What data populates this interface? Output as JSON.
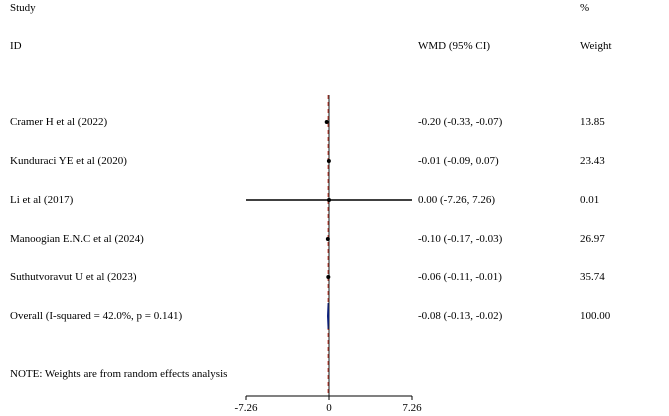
{
  "header": {
    "study_label": "Study",
    "id_label": "ID",
    "percent_label": "%",
    "wmd_label": "WMD (95% CI)",
    "weight_label": "Weight"
  },
  "note": "NOTE: Weights are from random effects analysis",
  "colors": {
    "null_line": "#1a1a1a",
    "overall_line": "#c0392b",
    "diamond": "#0b1f7a",
    "marker": "#000000"
  },
  "chart_data": {
    "type": "forest",
    "xlim": [
      -7.26,
      7.26
    ],
    "null_value": 0,
    "x_ticks": [
      {
        "value": -7.26,
        "label": "-7.26"
      },
      {
        "value": 0,
        "label": "0"
      },
      {
        "value": 7.26,
        "label": "7.26"
      }
    ],
    "studies": [
      {
        "id": "Cramer H et al (2022)",
        "estimate": -0.2,
        "lower": -0.33,
        "upper": -0.07,
        "ci_text": "-0.20 (-0.33, -0.07)",
        "weight": "13.85"
      },
      {
        "id": "Kunduraci YE et al (2020)",
        "estimate": -0.01,
        "lower": -0.09,
        "upper": 0.07,
        "ci_text": "-0.01 (-0.09, 0.07)",
        "weight": "23.43"
      },
      {
        "id": "Li  et al (2017)",
        "estimate": 0.0,
        "lower": -7.26,
        "upper": 7.26,
        "ci_text": "0.00 (-7.26, 7.26)",
        "weight": "0.01"
      },
      {
        "id": "Manoogian E.N.C et al (2024)",
        "estimate": -0.1,
        "lower": -0.17,
        "upper": -0.03,
        "ci_text": "-0.10 (-0.17, -0.03)",
        "weight": "26.97"
      },
      {
        "id": "Suthutvoravut U et al (2023)",
        "estimate": -0.06,
        "lower": -0.11,
        "upper": -0.01,
        "ci_text": "-0.06 (-0.11, -0.01)",
        "weight": "35.74"
      }
    ],
    "overall": {
      "id": "Overall  (I-squared = 42.0%, p = 0.141)",
      "estimate": -0.08,
      "lower": -0.13,
      "upper": -0.02,
      "ci_text": "-0.08 (-0.13, -0.02)",
      "weight": "100.00"
    }
  }
}
